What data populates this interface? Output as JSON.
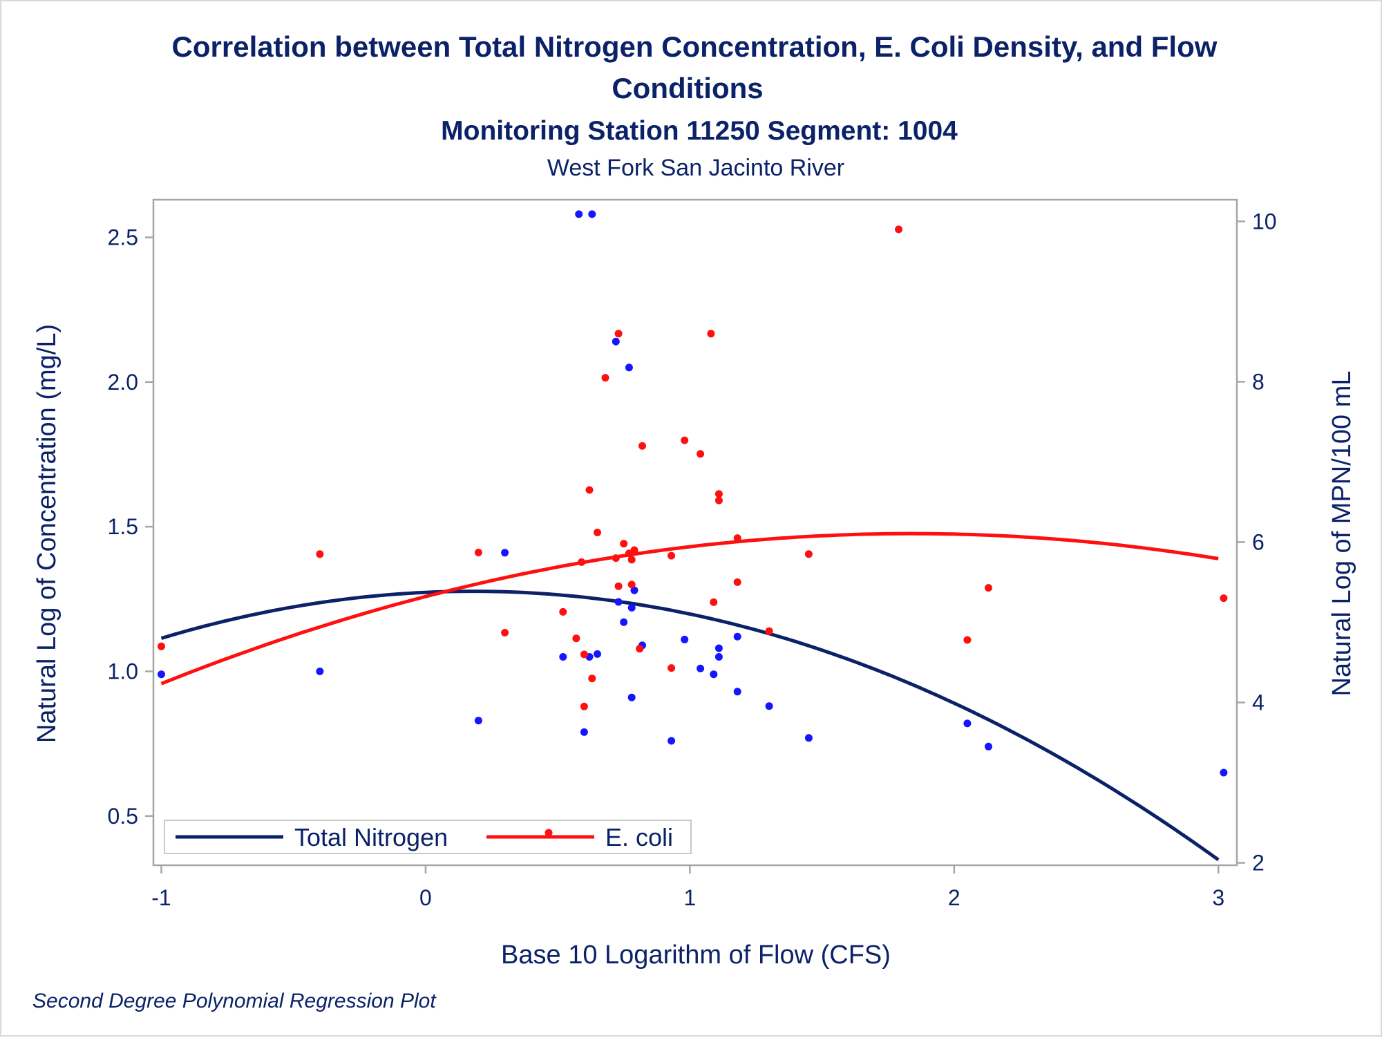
{
  "chart_data": {
    "type": "scatter",
    "title_line1": "Correlation between Total Nitrogen Concentration, E. Coli Density, and Flow",
    "title_line2": "Conditions",
    "subtitle": "Monitoring Station 11250 Segment: 1004",
    "subtitle2": "West Fork San Jacinto River",
    "xlabel": "Base 10 Logarithm of Flow (CFS)",
    "ylabel_left": "Natural Log of Concentration (mg/L)",
    "ylabel_right": "Natural Log of MPN/100 mL",
    "footnote": "Second Degree Polynomial Regression Plot",
    "xlim": [
      -1.03,
      3.07
    ],
    "ylim_left": [
      0.33,
      2.63
    ],
    "ylim_right": [
      1.97,
      10.27
    ],
    "x_ticks": [
      -1,
      0,
      1,
      2,
      3
    ],
    "x_tick_labels": [
      "-1",
      "0",
      "1",
      "2",
      "3"
    ],
    "yleft_ticks": [
      0.5,
      1.0,
      1.5,
      2.0,
      2.5
    ],
    "yleft_tick_labels": [
      "0.5",
      "1.0",
      "1.5",
      "2.0",
      "2.5"
    ],
    "yright_ticks": [
      2,
      4,
      6,
      8,
      10
    ],
    "yright_tick_labels": [
      "2",
      "4",
      "6",
      "8",
      "10"
    ],
    "grid": false,
    "legend_position": "bottom-left-inside",
    "colors": {
      "nitrogen_points": "#1515ff",
      "nitrogen_curve": "#0b2268",
      "ecoli_points": "#ff1010",
      "ecoli_curve": "#ff1010",
      "text": "#0b2268",
      "frame": "#a6a6a6"
    },
    "series": [
      {
        "name": "Total Nitrogen",
        "axis": "left",
        "fit": "quadratic",
        "points": [
          [
            -1.0,
            0.99
          ],
          [
            -0.4,
            1.0
          ],
          [
            0.2,
            0.83
          ],
          [
            0.3,
            1.41
          ],
          [
            0.52,
            1.05
          ],
          [
            0.58,
            2.58
          ],
          [
            0.6,
            0.79
          ],
          [
            0.62,
            1.05
          ],
          [
            0.63,
            2.58
          ],
          [
            0.65,
            1.06
          ],
          [
            0.72,
            2.14
          ],
          [
            0.73,
            1.24
          ],
          [
            0.75,
            1.17
          ],
          [
            0.77,
            2.05
          ],
          [
            0.78,
            1.22
          ],
          [
            0.78,
            0.91
          ],
          [
            0.79,
            1.28
          ],
          [
            0.82,
            1.09
          ],
          [
            0.93,
            0.76
          ],
          [
            0.98,
            1.11
          ],
          [
            1.04,
            1.01
          ],
          [
            1.09,
            0.99
          ],
          [
            1.11,
            1.08
          ],
          [
            1.11,
            1.05
          ],
          [
            1.18,
            0.93
          ],
          [
            1.18,
            1.12
          ],
          [
            1.3,
            0.88
          ],
          [
            1.45,
            0.77
          ],
          [
            2.05,
            0.82
          ],
          [
            2.13,
            0.74
          ],
          [
            3.02,
            0.65
          ]
        ],
        "curve_points": [
          [
            -1.0,
            1.11
          ],
          [
            -0.5,
            1.22
          ],
          [
            0.0,
            1.275
          ],
          [
            0.2,
            1.281
          ],
          [
            0.5,
            1.27
          ],
          [
            1.0,
            1.21
          ],
          [
            1.5,
            1.07
          ],
          [
            2.0,
            0.875
          ],
          [
            2.5,
            0.635
          ],
          [
            3.0,
            0.365
          ]
        ]
      },
      {
        "name": "E. coli",
        "axis": "right",
        "fit": "quadratic",
        "points": [
          [
            -1.0,
            4.7
          ],
          [
            -0.4,
            5.85
          ],
          [
            0.2,
            5.87
          ],
          [
            0.3,
            4.87
          ],
          [
            0.52,
            5.13
          ],
          [
            0.57,
            4.8
          ],
          [
            0.59,
            5.75
          ],
          [
            0.6,
            4.6
          ],
          [
            0.6,
            3.95
          ],
          [
            0.62,
            6.65
          ],
          [
            0.63,
            4.3
          ],
          [
            0.65,
            6.12
          ],
          [
            0.68,
            8.05
          ],
          [
            0.72,
            5.8
          ],
          [
            0.73,
            5.45
          ],
          [
            0.73,
            8.6
          ],
          [
            0.75,
            5.98
          ],
          [
            0.77,
            5.86
          ],
          [
            0.78,
            5.78
          ],
          [
            0.78,
            5.47
          ],
          [
            0.79,
            5.9
          ],
          [
            0.81,
            4.67
          ],
          [
            0.82,
            7.2
          ],
          [
            0.93,
            4.43
          ],
          [
            0.93,
            5.83
          ],
          [
            0.98,
            7.27
          ],
          [
            1.04,
            7.1
          ],
          [
            1.08,
            8.6
          ],
          [
            1.09,
            5.25
          ],
          [
            1.11,
            6.6
          ],
          [
            1.11,
            6.52
          ],
          [
            1.18,
            5.5
          ],
          [
            1.18,
            6.05
          ],
          [
            1.3,
            4.89
          ],
          [
            1.45,
            5.85
          ],
          [
            1.79,
            9.9
          ],
          [
            2.05,
            4.78
          ],
          [
            2.13,
            5.43
          ],
          [
            3.02,
            5.3
          ]
        ],
        "curve_points": [
          [
            -1.0,
            4.2
          ],
          [
            -0.5,
            4.85
          ],
          [
            0.0,
            5.35
          ],
          [
            0.5,
            5.72
          ],
          [
            1.0,
            5.95
          ],
          [
            1.5,
            6.06
          ],
          [
            1.8,
            6.08
          ],
          [
            2.0,
            6.075
          ],
          [
            2.5,
            5.99
          ],
          [
            3.0,
            5.83
          ]
        ]
      }
    ]
  }
}
